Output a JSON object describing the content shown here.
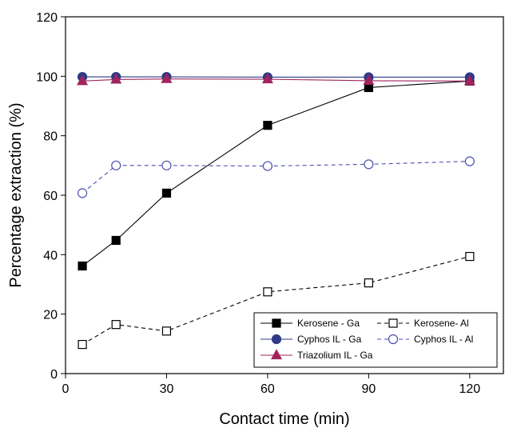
{
  "chart_data": {
    "type": "line",
    "title": "",
    "xlabel": "Contact time (min)",
    "ylabel": "Percentage extraction (%)",
    "xlim": [
      0,
      130
    ],
    "ylim": [
      0,
      120
    ],
    "xticks": [
      0,
      30,
      60,
      90,
      120
    ],
    "yticks": [
      0,
      20,
      40,
      60,
      80,
      100,
      120
    ],
    "x": [
      5,
      15,
      30,
      60,
      90,
      120
    ],
    "grid": false,
    "legend_position": "bottom-right",
    "series": [
      {
        "name": "Kerosene - Ga",
        "values": [
          36.2,
          44.8,
          60.7,
          83.5,
          96.2,
          98.4
        ],
        "color": "#000000",
        "marker": "square",
        "filled": true,
        "dashed": false
      },
      {
        "name": "Cyphos IL - Ga",
        "values": [
          99.8,
          99.8,
          99.8,
          99.7,
          99.7,
          99.7
        ],
        "color": "#2e3a87",
        "marker": "circle",
        "filled": true,
        "dashed": false
      },
      {
        "name": "Triazolium IL - Ga",
        "values": [
          98.4,
          98.9,
          99.1,
          99.0,
          98.5,
          98.4
        ],
        "color": "#a0245e",
        "marker": "triangle",
        "filled": true,
        "dashed": false
      },
      {
        "name": "Kerosene- Al",
        "values": [
          9.8,
          16.5,
          14.3,
          27.5,
          30.5,
          39.4
        ],
        "color": "#000000",
        "marker": "square",
        "filled": false,
        "dashed": true
      },
      {
        "name": "Cyphos IL - Al",
        "values": [
          60.7,
          70.0,
          70.0,
          69.8,
          70.4,
          71.4
        ],
        "color": "#4a4fb0",
        "marker": "circle",
        "filled": false,
        "dashed": true
      }
    ],
    "legend_order": [
      0,
      3,
      1,
      4,
      2
    ]
  }
}
